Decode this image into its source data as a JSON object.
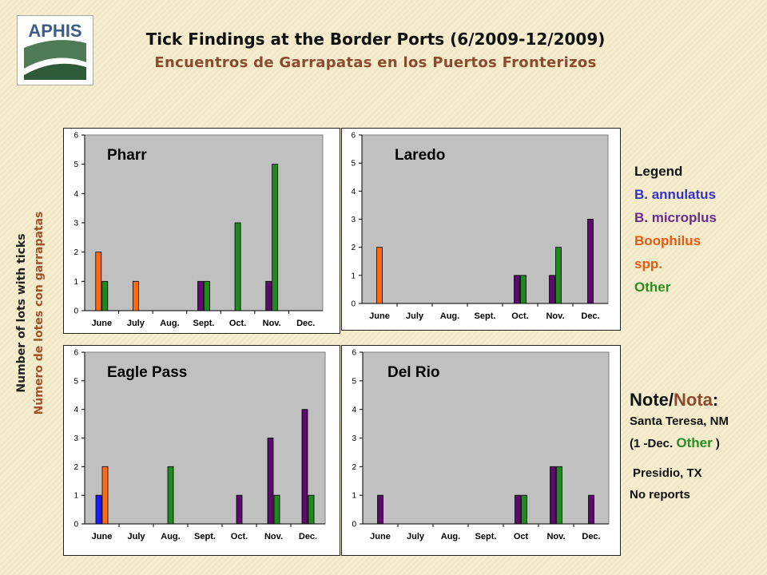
{
  "header": {
    "logo_text": "APHIS",
    "title_en": "Tick Findings at the Border Ports (6/2009-12/2009)",
    "title_es": "Encuentros de Garrapatas en los Puertos Fronterizos"
  },
  "y_axis_label": {
    "en": "Number of lots with ticks",
    "es": "Número de lotes con garrapatas"
  },
  "legend": {
    "title": "Legend",
    "items": [
      {
        "label": "B. annulatus",
        "color": "#3333cc"
      },
      {
        "label": "B. microplus",
        "color": "#6a2c8e"
      },
      {
        "label": "Boophilus",
        "color": "#e65a12"
      },
      {
        "label": "spp.",
        "color": "#e65a12"
      },
      {
        "label": "Other",
        "color": "#2e8b22"
      }
    ]
  },
  "note": {
    "title_en": "Note",
    "separator": "/",
    "title_es": "Nota",
    "colon": ":",
    "line1": "Santa Teresa, NM",
    "line2_prefix": "(1 -Dec. ",
    "line2_other": "Other",
    "line2_suffix": " )",
    "line3": "Presidio, TX",
    "line4": "No reports"
  },
  "series_colors": {
    "B. annulatus": "#1a1aff",
    "B. microplus": "#5c0a6b",
    "Boophilus spp.": "#ff6a13",
    "Other": "#1e8a1e"
  },
  "chart_data": [
    {
      "type": "bar",
      "title": "Pharr",
      "categories": [
        "June",
        "July",
        "Aug.",
        "Sept.",
        "Oct.",
        "Nov.",
        "Dec."
      ],
      "ylim": [
        0,
        6
      ],
      "yticks": [
        0,
        1,
        2,
        3,
        4,
        5,
        6
      ],
      "series": [
        {
          "name": "B. annulatus",
          "values": [
            0,
            0,
            0,
            0,
            0,
            0,
            0
          ]
        },
        {
          "name": "Boophilus spp.",
          "values": [
            2,
            1,
            0,
            0,
            0,
            0,
            0
          ]
        },
        {
          "name": "B. microplus",
          "values": [
            0,
            0,
            0,
            1,
            0,
            1,
            0
          ]
        },
        {
          "name": "Other",
          "values": [
            1,
            0,
            0,
            1,
            3,
            5,
            0
          ]
        }
      ]
    },
    {
      "type": "bar",
      "title": "Laredo",
      "categories": [
        "June",
        "July",
        "Aug.",
        "Sept.",
        "Oct.",
        "Nov.",
        "Dec."
      ],
      "ylim": [
        0,
        6
      ],
      "yticks": [
        0,
        1,
        2,
        3,
        4,
        5,
        6
      ],
      "series": [
        {
          "name": "B. annulatus",
          "values": [
            0,
            0,
            0,
            0,
            0,
            0,
            0
          ]
        },
        {
          "name": "Boophilus spp.",
          "values": [
            2,
            0,
            0,
            0,
            0,
            0,
            0
          ]
        },
        {
          "name": "B. microplus",
          "values": [
            0,
            0,
            0,
            0,
            1,
            1,
            3
          ]
        },
        {
          "name": "Other",
          "values": [
            0,
            0,
            0,
            0,
            1,
            2,
            0
          ]
        }
      ]
    },
    {
      "type": "bar",
      "title": "Eagle Pass",
      "categories": [
        "June",
        "July",
        "Aug.",
        "Sept.",
        "Oct.",
        "Nov.",
        "Dec."
      ],
      "ylim": [
        0,
        6
      ],
      "yticks": [
        0,
        1,
        2,
        3,
        4,
        5,
        6
      ],
      "series": [
        {
          "name": "B. annulatus",
          "values": [
            1,
            0,
            0,
            0,
            0,
            0,
            0
          ]
        },
        {
          "name": "Boophilus spp.",
          "values": [
            2,
            0,
            0,
            0,
            0,
            0,
            0
          ]
        },
        {
          "name": "B. microplus",
          "values": [
            0,
            0,
            0,
            0,
            1,
            3,
            4
          ]
        },
        {
          "name": "Other",
          "values": [
            0,
            0,
            2,
            0,
            0,
            1,
            1
          ]
        }
      ]
    },
    {
      "type": "bar",
      "title": "Del Rio",
      "categories": [
        "June",
        "July",
        "Aug.",
        "Sept.",
        "Oct",
        "Nov.",
        "Dec."
      ],
      "ylim": [
        0,
        6
      ],
      "yticks": [
        0,
        1,
        2,
        3,
        4,
        5,
        6
      ],
      "series": [
        {
          "name": "B. annulatus",
          "values": [
            0,
            0,
            0,
            0,
            0,
            0,
            0
          ]
        },
        {
          "name": "Boophilus spp.",
          "values": [
            0,
            0,
            0,
            0,
            0,
            0,
            0
          ]
        },
        {
          "name": "B. microplus",
          "values": [
            1,
            0,
            0,
            0,
            1,
            2,
            1
          ]
        },
        {
          "name": "Other",
          "values": [
            0,
            0,
            0,
            0,
            1,
            2,
            0
          ]
        }
      ]
    }
  ]
}
